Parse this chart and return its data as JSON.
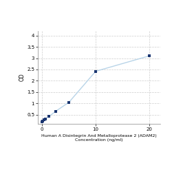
{
  "x": [
    0,
    0.156,
    0.313,
    0.625,
    1.25,
    2.5,
    5,
    10,
    20
  ],
  "y": [
    0.2,
    0.22,
    0.27,
    0.32,
    0.42,
    0.65,
    1.05,
    2.42,
    3.1
  ],
  "line_color": "#b8d4e8",
  "marker_color": "#1a3570",
  "marker_style": "s",
  "marker_size": 3.5,
  "line_width": 1.0,
  "xlabel_line1": "Human A Disintegrin And Metalloprotease 2 (ADAM2)",
  "xlabel_line2": "Concentration (ng/ml)",
  "ylabel": "OD",
  "xlim": [
    -0.8,
    22
  ],
  "ylim": [
    0.1,
    4.2
  ],
  "yticks": [
    0.5,
    1.0,
    1.5,
    2.0,
    2.5,
    3.0,
    3.5,
    4.0
  ],
  "ytick_labels": [
    "0.5",
    "1",
    "1.5",
    "2",
    "2.5",
    "3",
    "3.5",
    "4"
  ],
  "xticks": [
    0,
    10,
    20
  ],
  "xtick_labels": [
    "0",
    "10",
    "20"
  ],
  "grid_color": "#cccccc",
  "bg_color": "#ffffff",
  "xlabel_fontsize": 4.5,
  "ylabel_fontsize": 5.5,
  "tick_fontsize": 5
}
